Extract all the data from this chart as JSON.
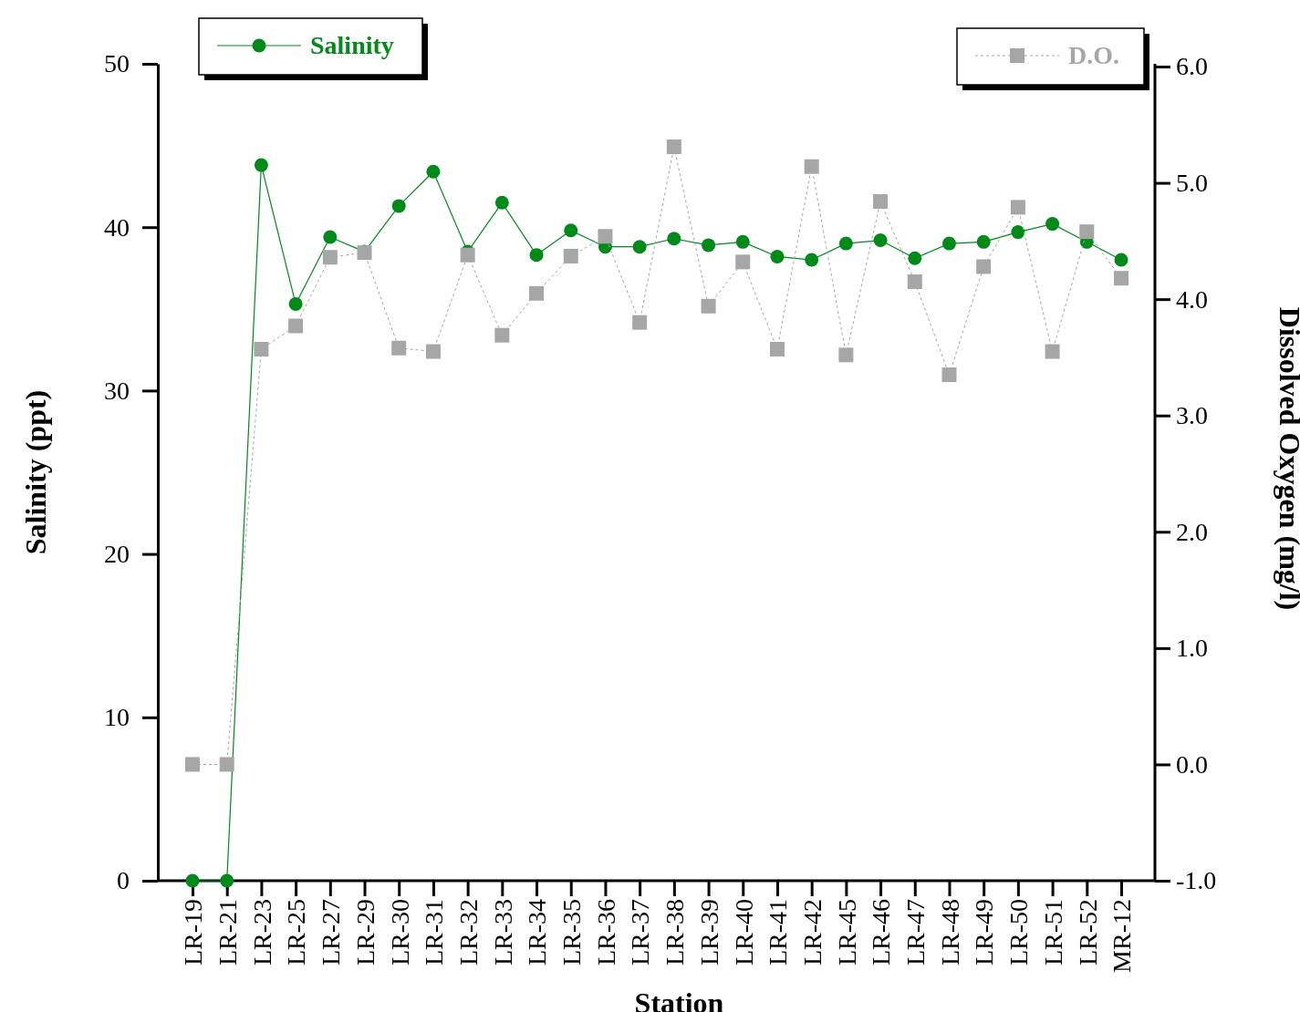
{
  "chart_data": {
    "type": "line",
    "xlabel": "Station",
    "ylabel": "Salinity (ppt)",
    "y2label": "Dissolved Oxygen (mg/l)",
    "categories": [
      "LR-19",
      "LR-21",
      "LR-23",
      "LR-25",
      "LR-27",
      "LR-29",
      "LR-30",
      "LR-31",
      "LR-32",
      "LR-33",
      "LR-34",
      "LR-35",
      "LR-36",
      "LR-37",
      "LR-38",
      "LR-39",
      "LR-40",
      "LR-41",
      "LR-42",
      "LR-45",
      "LR-46",
      "LR-47",
      "LR-48",
      "LR-49",
      "LR-50",
      "LR-51",
      "LR-52",
      "MR-12"
    ],
    "series": [
      {
        "name": "Salinity",
        "color": "#008a1a",
        "marker": "circle",
        "line_style": "solid",
        "values": [
          0,
          0,
          43.8,
          35.3,
          39.4,
          38.5,
          41.3,
          43.4,
          38.5,
          41.5,
          38.3,
          39.8,
          38.8,
          38.8,
          39.3,
          38.9,
          39.1,
          38.2,
          38.0,
          39.0,
          39.2,
          38.1,
          39.0,
          39.1,
          39.7,
          40.2,
          39.1,
          38.0
        ]
      },
      {
        "name": "D.O.",
        "color": "#a6a6a6",
        "marker": "square",
        "line_style": "dotted",
        "axis": "y2",
        "values": [
          0.0,
          0.0,
          3.57,
          3.77,
          4.36,
          4.4,
          3.58,
          3.55,
          4.38,
          3.69,
          4.05,
          4.37,
          4.54,
          3.8,
          5.31,
          3.94,
          4.32,
          3.57,
          5.14,
          3.52,
          4.84,
          4.15,
          3.35,
          4.28,
          4.79,
          3.55,
          4.58,
          4.18
        ]
      }
    ],
    "ylim": [
      0,
      50
    ],
    "yticks": [
      0,
      10,
      20,
      30,
      40,
      50
    ],
    "y2lim": [
      -1,
      6
    ],
    "y2ticks": [
      {
        "value": -1,
        "label": "-1.0"
      },
      {
        "value": 0,
        "label": "0.0"
      },
      {
        "value": 1,
        "label": "1.0"
      },
      {
        "value": 2,
        "label": "2.0"
      },
      {
        "value": 3,
        "label": "3.0"
      },
      {
        "value": 4,
        "label": "4.0"
      },
      {
        "value": 5,
        "label": "5.0"
      },
      {
        "value": 6,
        "label": "6.0"
      }
    ],
    "grid": false,
    "legend": "top"
  }
}
